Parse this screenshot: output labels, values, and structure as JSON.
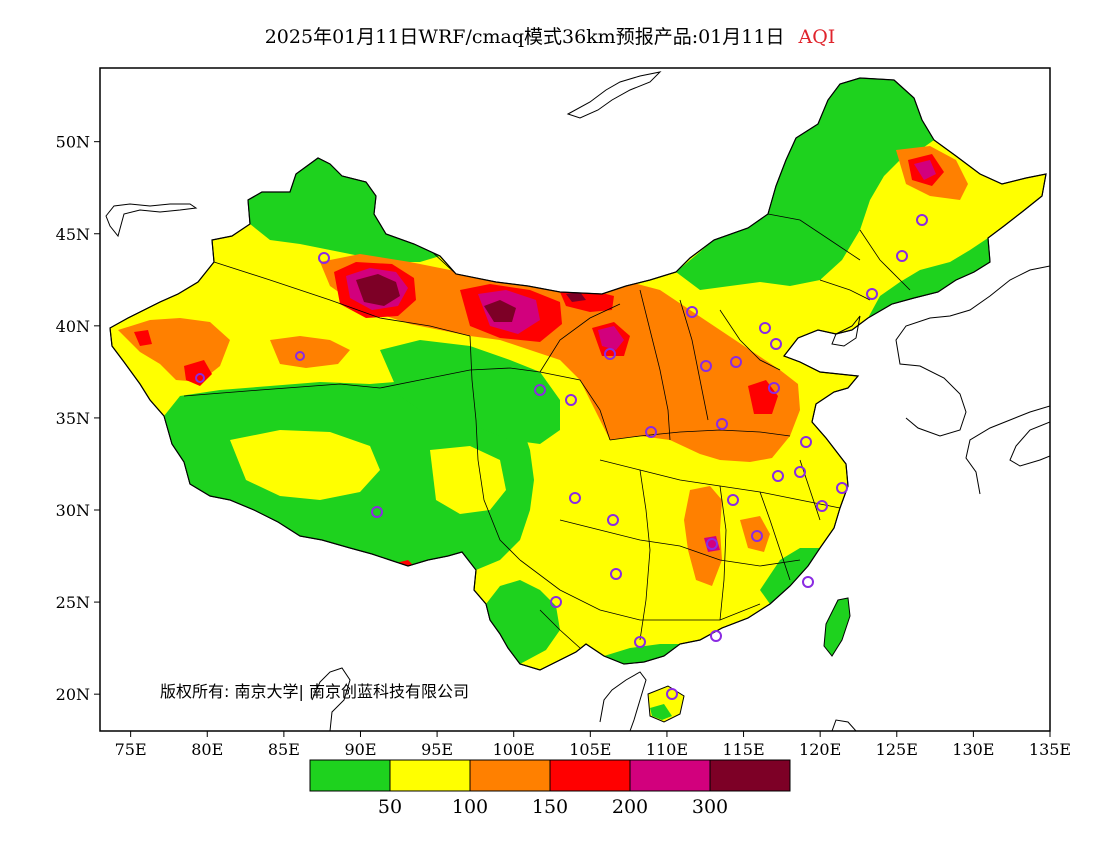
{
  "title": {
    "text": "2025年01月11日WRF/cmaq模式36km预报产品:01月11日",
    "variable": "AQI",
    "variable_color": "#e0242c"
  },
  "axes": {
    "lat_labels": [
      "50N",
      "45N",
      "40N",
      "35N",
      "30N",
      "25N",
      "20N"
    ],
    "lat_values": [
      50,
      45,
      40,
      35,
      30,
      25,
      20
    ],
    "lon_labels": [
      "75E",
      "80E",
      "85E",
      "90E",
      "95E",
      "100E",
      "105E",
      "110E",
      "115E",
      "120E",
      "125E",
      "130E",
      "135E"
    ],
    "lon_values": [
      75,
      80,
      85,
      90,
      95,
      100,
      105,
      110,
      115,
      120,
      125,
      130,
      135
    ],
    "lon_range": [
      73,
      135
    ],
    "lat_range": [
      18,
      54
    ]
  },
  "copyright": "版权所有: 南京大学| 南京创蓝科技有限公司",
  "legend": {
    "colors": [
      "#1ed21e",
      "#ffff00",
      "#ff8000",
      "#ff0000",
      "#d2007d",
      "#7d0026"
    ],
    "labels": [
      "50",
      "100",
      "150",
      "200",
      "300"
    ]
  },
  "colors": {
    "good": "#1ed21e",
    "moderate": "#ffff00",
    "sensitive": "#ff8000",
    "unhealthy": "#ff0000",
    "very_unhealthy": "#d2007d",
    "hazardous": "#7d0026",
    "station_marker": "#8a2be2"
  }
}
